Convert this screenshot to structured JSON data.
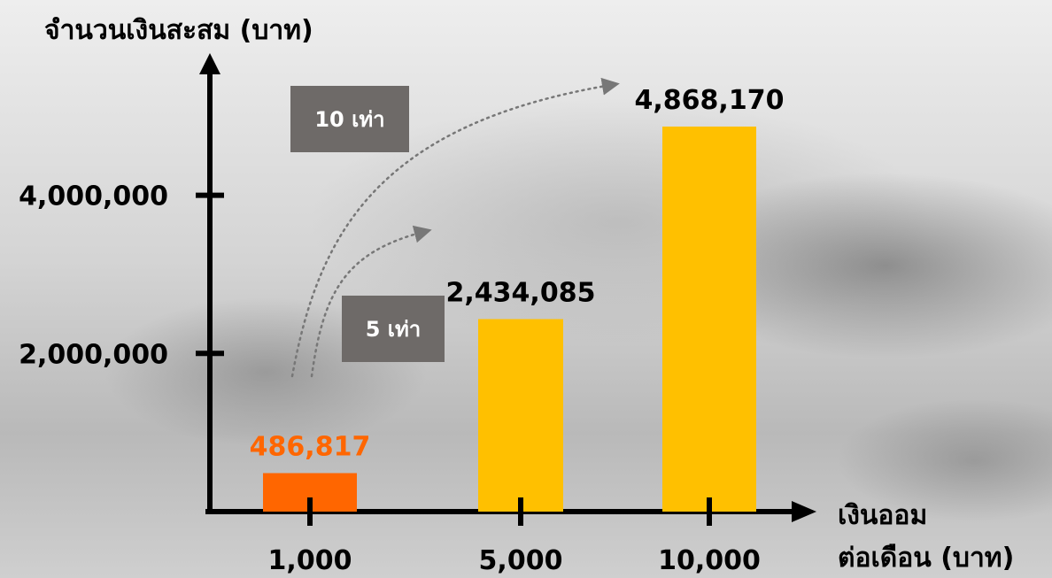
{
  "chart_data": {
    "type": "bar",
    "ylabel": "จำนวนเงินสะสม (บาท)",
    "xlabel_lines": [
      "เงินออม",
      "ต่อเดือน (บาท)"
    ],
    "categories": [
      "1,000",
      "5,000",
      "10,000"
    ],
    "values": [
      486817,
      2434085,
      4868170
    ],
    "value_labels": [
      "486,817",
      "2,434,085",
      "4,868,170"
    ],
    "bar_colors": [
      "#ff6600",
      "#ffc000",
      "#ffc000"
    ],
    "value_label_colors": [
      "#ff6600",
      "#000000",
      "#000000"
    ],
    "yticks": [
      2000000,
      4000000
    ],
    "ytick_labels": [
      "2,000,000",
      "4,000,000"
    ],
    "ylim": [
      0,
      5000000
    ],
    "annotations": [
      "10 เท่า",
      "5 เท่า"
    ],
    "grid": false
  }
}
